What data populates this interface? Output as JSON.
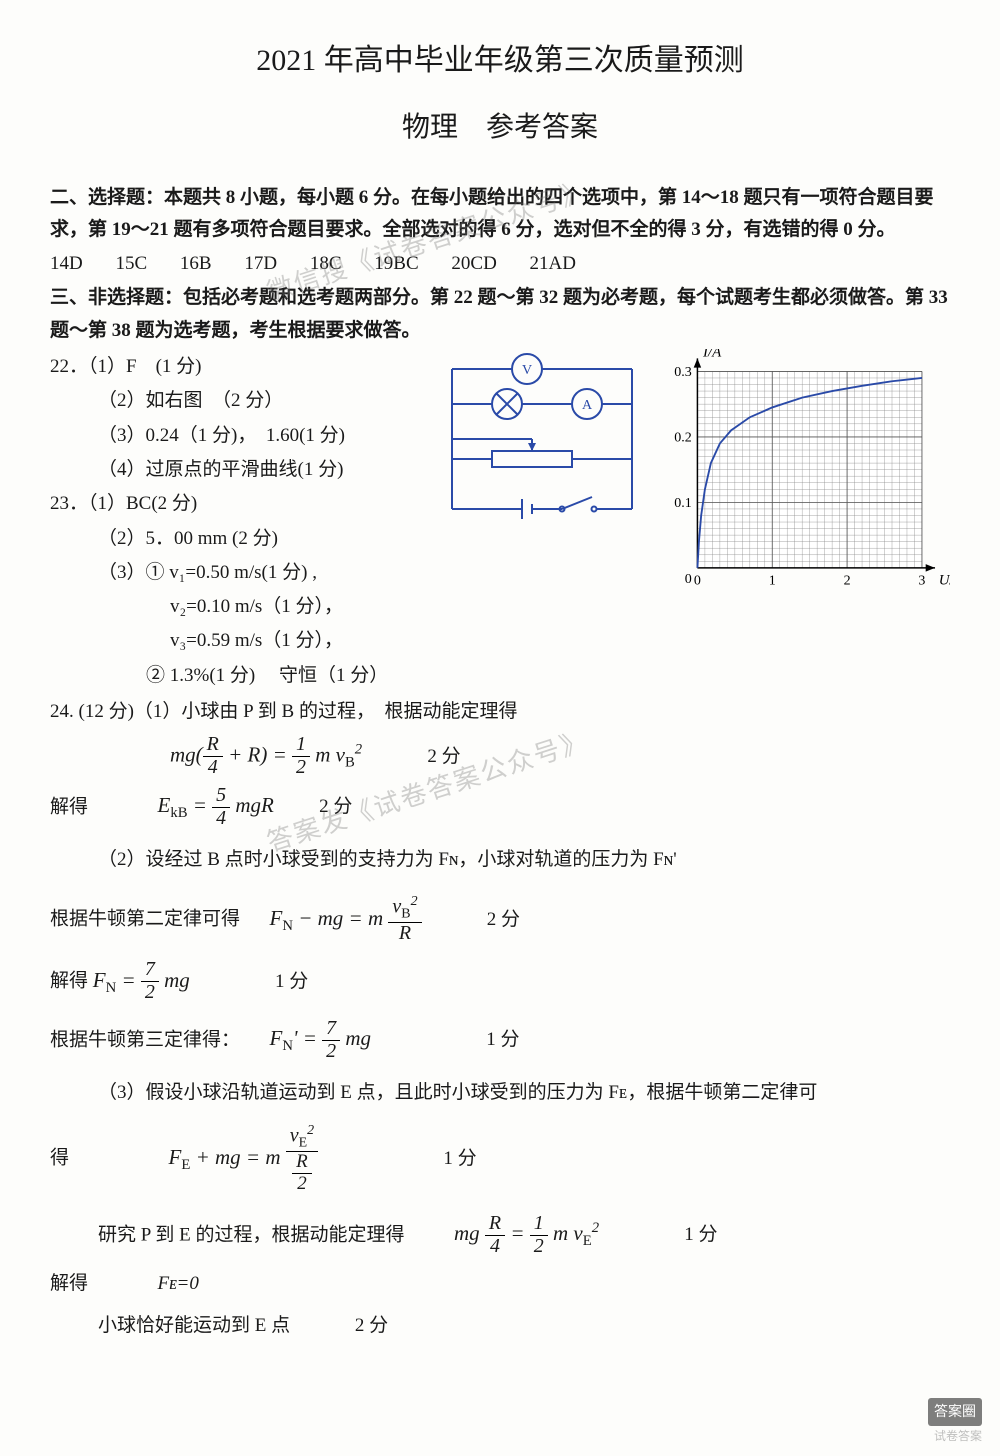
{
  "title": {
    "main": "2021 年高中毕业年级第三次质量预测",
    "sub": "物理　参考答案"
  },
  "section2_head": "二、选择题：本题共 8 小题，每小题 6 分。在每小题给出的四个选项中，第 14～18 题只有一项符合题目要求，第 19～21 题有多项符合题目要求。全部选对的得 6 分，选对但不全的得 3 分，有选错的得 0 分。",
  "options": [
    "14D",
    "15C",
    "16B",
    "17D",
    "18C",
    "19BC",
    "20CD",
    "21AD"
  ],
  "section3_head": "三、非选择题：包括必考题和选考题两部分。第 22 题～第 32 题为必考题，每个试题考生都必须做答。第 33 题～第 38 题为选考题，考生根据要求做答。",
  "q22": {
    "head": "22．（1）F　(1 分)",
    "l2": "（2）如右图　（2 分）",
    "l3": "（3）0.24（1 分)，　1.60(1 分)",
    "l4": "（4）过原点的平滑曲线(1 分)"
  },
  "q23": {
    "head": "23．（1）BC(2 分)",
    "l2": "（2）5．00 mm (2 分)",
    "l3": "（3）① v₁=0.50 m/s(1 分) ,",
    "l3b": "v₂=0.10 m/s（1 分），",
    "l3c": "v₃=0.59 m/s（1 分），",
    "l4": "② 1.3%(1 分)　 守恒（1 分）"
  },
  "q24": {
    "head": "24. (12 分)（1）小球由 P 到 B 的过程，　根据动能定理得",
    "eq1_score": "2 分",
    "solve1_label": "解得",
    "eq2_score": "2 分",
    "part2": "（2）设经过 B 点时小球受到的支持力为 Fɴ，小球对轨道的压力为 Fɴ'",
    "newton2": "根据牛顿第二定律可得",
    "eq3_score": "2 分",
    "solve_fn_label": "解得",
    "eq4_score": "1 分",
    "newton3": "根据牛顿第三定律得：",
    "eq5_score": "1 分",
    "part3": "（3）假设小球沿轨道运动到 E 点，且此时小球受到的压力为 Fᴇ，根据牛顿第二定律可",
    "de": "得",
    "eq6_score": "1 分",
    "pe_line": "研究 P 到 E 的过程，根据动能定理得",
    "eq7_score": "1 分",
    "solve_fe_label": "解得",
    "fe_val": "Fᴇ=0",
    "last": "小球恰好能运动到 E 点",
    "last_score": "2 分"
  },
  "watermarks": {
    "wm1": "答案发《试卷答案公众号》",
    "wm2": "微信搜《试卷答案公众号》",
    "wm3": "答案发《试卷答案公众号》",
    "corner1": "答案圈",
    "corner2": "试卷答案"
  },
  "chart": {
    "type": "line",
    "x_label": "U/V",
    "y_label": "I/A",
    "xlim": [
      0,
      3
    ],
    "ylim": [
      0,
      0.3
    ],
    "x_major_ticks": [
      0,
      1,
      2,
      3
    ],
    "y_major_ticks": [
      0,
      0.1,
      0.2,
      0.3
    ],
    "x_minor_count": 10,
    "y_minor_count": 10,
    "grid_color": "#888888",
    "line_color": "#2a4aa8",
    "line_width": 2,
    "background": "#ffffff",
    "points": [
      [
        0.0,
        0.0
      ],
      [
        0.02,
        0.04
      ],
      [
        0.05,
        0.08
      ],
      [
        0.1,
        0.12
      ],
      [
        0.18,
        0.16
      ],
      [
        0.3,
        0.19
      ],
      [
        0.45,
        0.21
      ],
      [
        0.7,
        0.23
      ],
      [
        1.0,
        0.245
      ],
      [
        1.4,
        0.26
      ],
      [
        1.8,
        0.27
      ],
      [
        2.2,
        0.278
      ],
      [
        2.6,
        0.285
      ],
      [
        3.0,
        0.29
      ]
    ]
  },
  "circuit": {
    "line_color": "#2a4aa8",
    "line_width": 2
  }
}
